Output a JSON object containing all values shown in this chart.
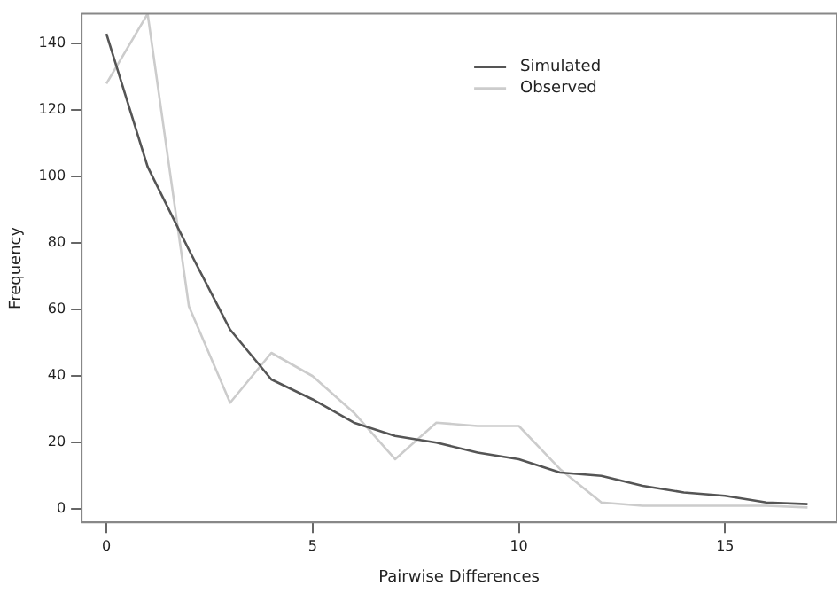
{
  "chart_data": {
    "type": "line",
    "xlabel": "Pairwise Differences",
    "ylabel": "Frequency",
    "x": [
      0,
      1,
      2,
      3,
      4,
      5,
      6,
      7,
      8,
      9,
      10,
      11,
      12,
      13,
      14,
      15,
      16,
      17
    ],
    "series": [
      {
        "name": "Simulated",
        "color": "#555555",
        "values": [
          143,
          103,
          78,
          54,
          39,
          33,
          26,
          22,
          20,
          17,
          15,
          11,
          10,
          7,
          5,
          4,
          2,
          1.5
        ]
      },
      {
        "name": "Observed",
        "color": "#cccccc",
        "values": [
          128,
          149,
          61,
          32,
          47,
          40,
          29,
          15,
          26,
          25,
          25,
          12,
          2,
          1,
          1,
          1,
          1,
          0.5
        ]
      }
    ],
    "xlim": [
      -0.6,
      17.7
    ],
    "ylim": [
      -4,
      149
    ],
    "xticks": [
      0,
      5,
      10,
      15
    ],
    "yticks": [
      0,
      20,
      40,
      60,
      80,
      100,
      120,
      140
    ],
    "grid": false,
    "legend": "top right",
    "marker": "none",
    "line_style": "solid"
  }
}
